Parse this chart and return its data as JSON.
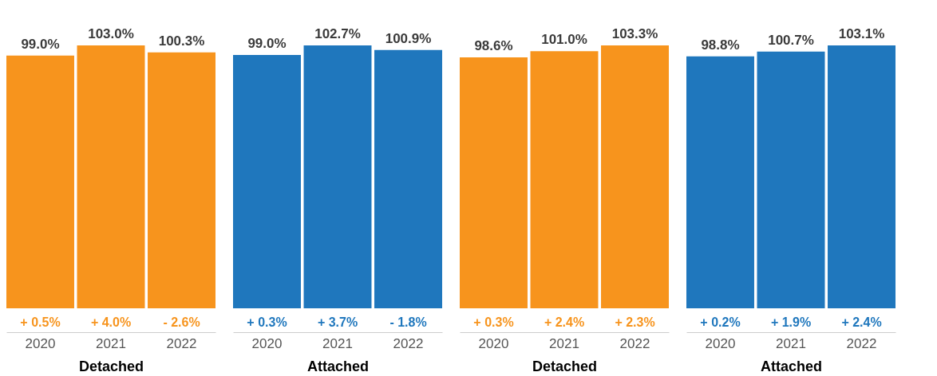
{
  "chart_data": [
    {
      "type": "bar",
      "categories": [
        "2020",
        "2021",
        "2022"
      ],
      "xlabel": "Detached",
      "color": "#f7941d",
      "values": [
        99.0,
        103.0,
        100.3
      ],
      "value_labels": [
        "99.0%",
        "103.0%",
        "100.3%"
      ],
      "tick_labels": "x",
      "grid": false,
      "annotations": [
        "+ 0.5%",
        "+ 4.0%",
        "- 2.6%"
      ]
    },
    {
      "type": "bar",
      "categories": [
        "2020",
        "2021",
        "2022"
      ],
      "xlabel": "Attached",
      "color": "#1f77bd",
      "values": [
        99.0,
        102.7,
        100.9
      ],
      "value_labels": [
        "99.0%",
        "102.7%",
        "100.9%"
      ],
      "tick_labels": "x",
      "grid": false,
      "annotations": [
        "+ 0.3%",
        "+ 3.7%",
        "- 1.8%"
      ]
    },
    {
      "type": "bar",
      "categories": [
        "2020",
        "2021",
        "2022"
      ],
      "xlabel": "Detached",
      "color": "#f7941d",
      "values": [
        98.6,
        101.0,
        103.3
      ],
      "value_labels": [
        "98.6%",
        "101.0%",
        "103.3%"
      ],
      "tick_labels": "x",
      "grid": false,
      "annotations": [
        "+ 0.3%",
        "+ 2.4%",
        "+ 2.3%"
      ]
    },
    {
      "type": "bar",
      "categories": [
        "2020",
        "2021",
        "2022"
      ],
      "xlabel": "Attached",
      "color": "#1f77bd",
      "values": [
        98.8,
        100.7,
        103.1
      ],
      "value_labels": [
        "98.8%",
        "100.7%",
        "103.1%"
      ],
      "tick_labels": "x",
      "grid": false,
      "annotations": [
        "+ 0.2%",
        "+ 1.9%",
        "+ 2.4%"
      ]
    }
  ]
}
